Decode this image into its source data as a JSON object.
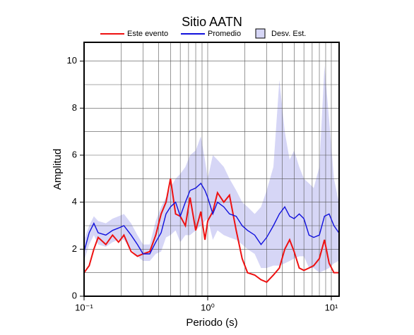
{
  "chart_data": {
    "type": "line",
    "title": "Sitio AATN",
    "xlabel": "Periodo (s)",
    "ylabel": "Amplitud",
    "xscale": "log",
    "grid": true,
    "legend": "top",
    "xlim": [
      0.1,
      11.56
    ],
    "ylim": [
      0,
      10.8
    ],
    "xticks": [
      {
        "value": 0.1,
        "label": "10⁻¹"
      },
      {
        "value": 1,
        "label": "10⁰"
      },
      {
        "value": 10,
        "label": "10¹"
      }
    ],
    "yticks": [
      0,
      2,
      4,
      6,
      8,
      10
    ],
    "x": [
      0.1,
      0.11,
      0.12,
      0.13,
      0.15,
      0.17,
      0.19,
      0.21,
      0.24,
      0.27,
      0.3,
      0.34,
      0.38,
      0.42,
      0.46,
      0.5,
      0.55,
      0.6,
      0.66,
      0.72,
      0.8,
      0.88,
      0.95,
      1.0,
      1.1,
      1.2,
      1.35,
      1.5,
      1.7,
      1.9,
      2.1,
      2.4,
      2.7,
      3.0,
      3.4,
      3.8,
      4.2,
      4.6,
      5.0,
      5.5,
      6.0,
      6.6,
      7.2,
      8.0,
      8.8,
      9.6,
      10.5,
      11.5
    ],
    "series": [
      {
        "name": "Este evento",
        "color": "#ee1111",
        "values": [
          1.0,
          1.3,
          2.0,
          2.5,
          2.2,
          2.6,
          2.3,
          2.6,
          1.9,
          1.7,
          1.8,
          1.9,
          2.6,
          3.5,
          4.0,
          5.0,
          3.5,
          3.4,
          3.0,
          4.2,
          2.8,
          3.6,
          2.4,
          3.2,
          3.6,
          4.4,
          4.0,
          4.3,
          2.8,
          1.6,
          1.0,
          0.9,
          0.7,
          0.6,
          0.9,
          1.2,
          2.0,
          2.4,
          1.9,
          1.2,
          1.1,
          1.2,
          1.3,
          1.6,
          2.4,
          1.4,
          1.0,
          1.0
        ]
      },
      {
        "name": "Promedio",
        "color": "#1111dd",
        "values": [
          1.9,
          2.7,
          3.1,
          2.7,
          2.6,
          2.8,
          2.9,
          3.0,
          2.6,
          2.2,
          1.8,
          1.8,
          2.3,
          2.7,
          3.5,
          3.8,
          4.0,
          3.4,
          4.0,
          4.5,
          4.6,
          4.8,
          4.5,
          4.2,
          3.5,
          4.0,
          3.8,
          3.5,
          3.4,
          3.0,
          2.8,
          2.6,
          2.2,
          2.5,
          3.0,
          3.5,
          3.8,
          3.4,
          3.3,
          3.5,
          3.3,
          2.6,
          2.5,
          2.6,
          3.4,
          3.5,
          3.0,
          2.7
        ]
      },
      {
        "name": "Desv. Est.",
        "color": "#d6d6f6",
        "type": "band",
        "upper": [
          2.4,
          3.0,
          3.4,
          3.2,
          3.1,
          3.3,
          3.4,
          3.5,
          3.1,
          2.6,
          2.2,
          2.2,
          3.2,
          3.8,
          4.2,
          4.6,
          5.0,
          5.2,
          5.5,
          6.0,
          6.2,
          6.8,
          5.8,
          5.0,
          6.0,
          5.8,
          5.5,
          5.0,
          4.5,
          4.0,
          3.8,
          3.5,
          3.8,
          4.5,
          5.5,
          9.2,
          7.0,
          5.8,
          6.2,
          5.5,
          5.0,
          4.8,
          4.6,
          5.5,
          9.8,
          7.5,
          5.0,
          4.0
        ],
        "lower": [
          1.5,
          2.2,
          2.6,
          2.2,
          2.1,
          2.3,
          2.4,
          2.4,
          2.0,
          1.7,
          1.5,
          1.5,
          1.8,
          1.9,
          2.5,
          2.6,
          2.8,
          2.3,
          2.6,
          2.6,
          2.8,
          3.0,
          3.2,
          3.3,
          2.4,
          2.8,
          2.6,
          2.5,
          2.4,
          2.2,
          2.0,
          1.8,
          1.2,
          1.2,
          1.3,
          1.3,
          1.4,
          1.5,
          1.6,
          1.7,
          1.7,
          1.2,
          1.2,
          1.0,
          1.1,
          1.2,
          1.4,
          1.5
        ]
      }
    ]
  }
}
